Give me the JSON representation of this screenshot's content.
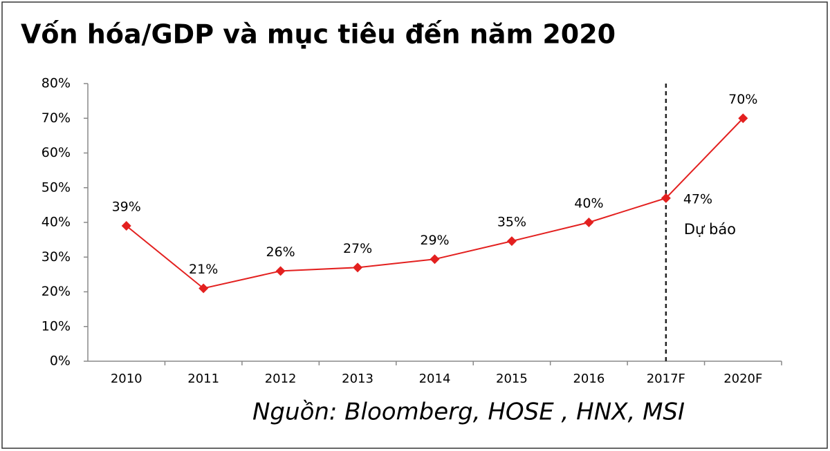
{
  "chart_data": {
    "type": "line",
    "title": "Vốn hóa/GDP và mục tiêu đến năm 2020",
    "categories": [
      "2010",
      "2011",
      "2012",
      "2013",
      "2014",
      "2015",
      "2016",
      "2017F",
      "2020F"
    ],
    "series": [
      {
        "name": "Vốn hóa/GDP",
        "color": "#e3201f",
        "values": [
          39,
          21,
          26,
          27,
          29.4,
          34.6,
          40,
          47,
          70
        ],
        "value_labels": [
          "39%",
          "21%",
          "26%",
          "27%",
          "29%",
          "35%",
          "40%",
          "47%",
          "70%"
        ]
      }
    ],
    "ylim": [
      0,
      80
    ],
    "yticks": [
      {
        "value": 0,
        "label": "0%"
      },
      {
        "value": 10,
        "label": "10%"
      },
      {
        "value": 20,
        "label": "20%"
      },
      {
        "value": 30,
        "label": "30%"
      },
      {
        "value": 40,
        "label": "40%"
      },
      {
        "value": 50,
        "label": "50%"
      },
      {
        "value": 60,
        "label": "60%"
      },
      {
        "value": 70,
        "label": "70%"
      },
      {
        "value": 80,
        "label": "80%"
      }
    ],
    "grid": false,
    "annotation": "Dự báo",
    "source": "Nguồn: Bloomberg, HOSE , HNX, MSI"
  }
}
